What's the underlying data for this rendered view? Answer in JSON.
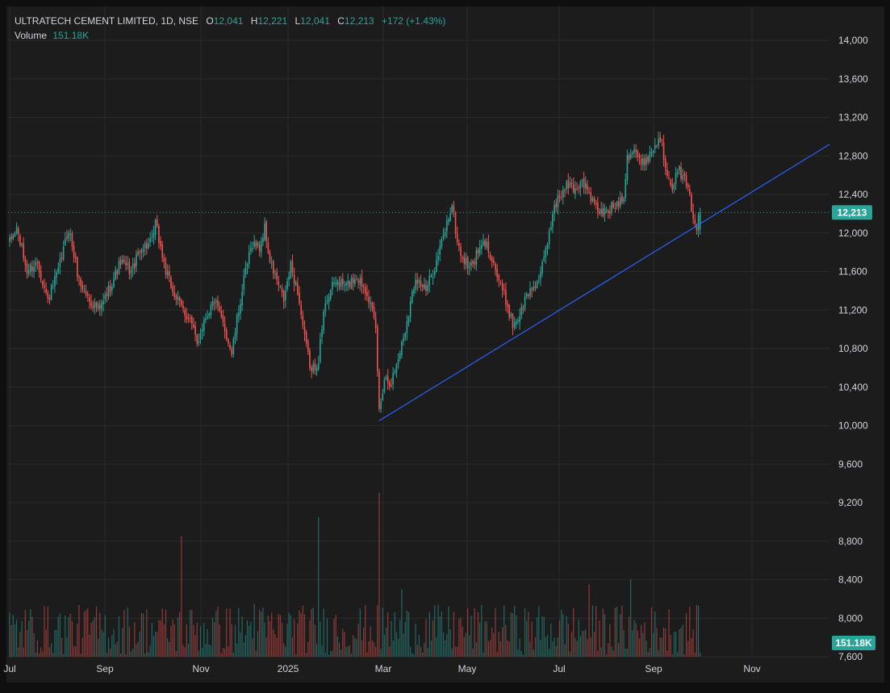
{
  "colors": {
    "background": "#1c1c1c",
    "frame": "#0f0f0f",
    "grid": "#2a2a2a",
    "text": "#d1d4dc",
    "up": "#26a69a",
    "down": "#ef5350",
    "trendline": "#2962ff",
    "last_price_tag": "#26a69a"
  },
  "legend": {
    "title": "ULTRATECH CEMENT LIMITED, 1D, NSE",
    "o_label": "O",
    "o_value": "12,041",
    "h_label": "H",
    "h_value": "12,221",
    "l_label": "L",
    "l_value": "12,041",
    "c_label": "C",
    "c_value": "12,213",
    "change": "+172 (+1.43%)",
    "volume_label": "Volume",
    "volume_value": "151.18K"
  },
  "chart_data": {
    "type": "candlestick",
    "symbol": "ULTRATECH CEMENT LIMITED",
    "interval": "1D",
    "exchange": "NSE",
    "y_ticks": [
      14000,
      13600,
      13200,
      12800,
      12400,
      12000,
      11600,
      11200,
      10800,
      10400,
      10000,
      9600,
      9200,
      8800,
      8400,
      8000,
      7600
    ],
    "y_tick_labels": [
      "14,000",
      "13,600",
      "13,200",
      "12,800",
      "12,400",
      "12,000",
      "11,600",
      "11,200",
      "10,800",
      "10,400",
      "10,000",
      "9,600",
      "9,200",
      "8,800",
      "8,400",
      "8,000",
      "7,600"
    ],
    "x_tick_labels": [
      "Jul",
      "Sep",
      "Nov",
      "2025",
      "Mar",
      "May",
      "Jul",
      "Sep",
      "Nov"
    ],
    "last_price": 12213,
    "last_price_label": "12,213",
    "last_volume_label": "151.18K",
    "trendline": {
      "from": {
        "date": "Feb 28, 2025",
        "price": 10050
      },
      "to": {
        "date": "Nov 2025",
        "price": 12920
      }
    },
    "price_anchors": [
      [
        0,
        11900
      ],
      [
        4,
        12050
      ],
      [
        10,
        11600
      ],
      [
        16,
        11700
      ],
      [
        22,
        11300
      ],
      [
        28,
        11600
      ],
      [
        34,
        12050
      ],
      [
        40,
        11500
      ],
      [
        46,
        11300
      ],
      [
        52,
        11200
      ],
      [
        58,
        11450
      ],
      [
        64,
        11700
      ],
      [
        70,
        11600
      ],
      [
        76,
        11850
      ],
      [
        82,
        11900
      ],
      [
        84,
        12100
      ],
      [
        90,
        11600
      ],
      [
        94,
        11400
      ],
      [
        98,
        11250
      ],
      [
        104,
        11100
      ],
      [
        108,
        10850
      ],
      [
        112,
        11100
      ],
      [
        118,
        11300
      ],
      [
        124,
        11000
      ],
      [
        128,
        10750
      ],
      [
        132,
        11200
      ],
      [
        136,
        11600
      ],
      [
        140,
        11900
      ],
      [
        144,
        11850
      ],
      [
        147,
        12050
      ],
      [
        150,
        11700
      ],
      [
        154,
        11500
      ],
      [
        158,
        11300
      ],
      [
        162,
        11650
      ],
      [
        166,
        11400
      ],
      [
        170,
        10900
      ],
      [
        174,
        10550
      ],
      [
        178,
        10700
      ],
      [
        182,
        11300
      ],
      [
        188,
        11500
      ],
      [
        194,
        11450
      ],
      [
        200,
        11550
      ],
      [
        206,
        11400
      ],
      [
        211,
        11000
      ],
      [
        213,
        10150
      ],
      [
        216,
        10500
      ],
      [
        220,
        10450
      ],
      [
        224,
        10700
      ],
      [
        228,
        11000
      ],
      [
        234,
        11550
      ],
      [
        240,
        11400
      ],
      [
        246,
        11700
      ],
      [
        252,
        12100
      ],
      [
        255,
        12300
      ],
      [
        258,
        11900
      ],
      [
        262,
        11700
      ],
      [
        266,
        11650
      ],
      [
        270,
        11800
      ],
      [
        274,
        11900
      ],
      [
        278,
        11750
      ],
      [
        282,
        11500
      ],
      [
        286,
        11300
      ],
      [
        290,
        11050
      ],
      [
        294,
        11150
      ],
      [
        298,
        11350
      ],
      [
        302,
        11450
      ],
      [
        306,
        11550
      ],
      [
        310,
        11900
      ],
      [
        314,
        12300
      ],
      [
        318,
        12400
      ],
      [
        322,
        12500
      ],
      [
        326,
        12450
      ],
      [
        330,
        12550
      ],
      [
        334,
        12400
      ],
      [
        338,
        12250
      ],
      [
        342,
        12200
      ],
      [
        346,
        12250
      ],
      [
        350,
        12300
      ],
      [
        354,
        12400
      ],
      [
        356,
        12800
      ],
      [
        360,
        12880
      ],
      [
        364,
        12700
      ],
      [
        368,
        12800
      ],
      [
        372,
        12900
      ],
      [
        375,
        13000
      ],
      [
        378,
        12700
      ],
      [
        382,
        12500
      ],
      [
        386,
        12650
      ],
      [
        390,
        12500
      ],
      [
        394,
        12200
      ],
      [
        396,
        12050
      ],
      [
        398,
        12213
      ]
    ],
    "volume_spikes": [
      [
        99,
        8850
      ],
      [
        141,
        8150
      ],
      [
        178,
        9050
      ],
      [
        213,
        9300
      ],
      [
        226,
        8300
      ],
      [
        290,
        8050
      ],
      [
        334,
        8350
      ],
      [
        358,
        8400
      ]
    ],
    "volume_base": 7600
  }
}
